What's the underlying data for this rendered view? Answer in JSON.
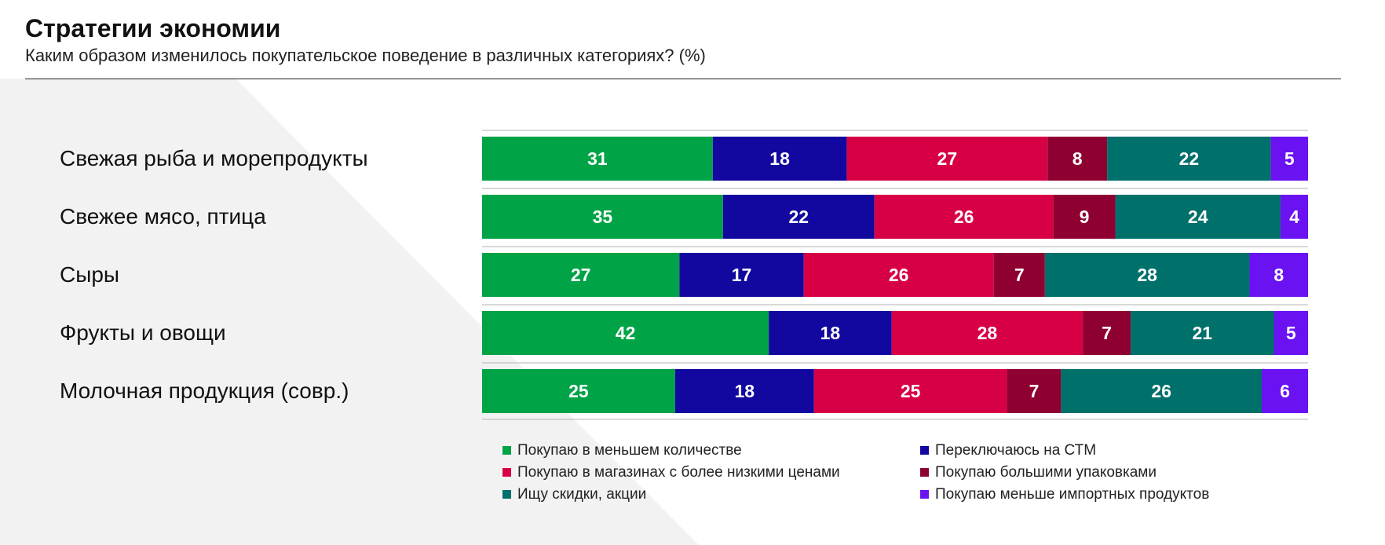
{
  "header": {
    "title": "Стратегии экономии",
    "subtitle": "Каким образом изменилось покупательское поведение в различных категориях? (%)"
  },
  "chart_data": {
    "type": "bar",
    "orientation": "horizontal",
    "stacked": true,
    "title": "Стратегии экономии",
    "subtitle": "Каким образом изменилось покупательское поведение в различных категориях? (%)",
    "categories": [
      "Свежая рыба и морепродукты",
      "Свежее мясо, птица",
      "Сыры",
      "Фрукты и овощи",
      "Молочная продукция (совр.)"
    ],
    "series": [
      {
        "name": "Покупаю в меньшем количестве",
        "color": "#00a346",
        "values": [
          31,
          35,
          27,
          42,
          25
        ]
      },
      {
        "name": "Переключаюсь на СТМ",
        "color": "#12089f",
        "values": [
          18,
          22,
          17,
          18,
          18
        ]
      },
      {
        "name": "Покупаю в магазинах с более низкими ценами",
        "color": "#d80045",
        "values": [
          27,
          26,
          26,
          28,
          25
        ]
      },
      {
        "name": "Покупаю большими упаковками",
        "color": "#8f0032",
        "values": [
          8,
          9,
          7,
          7,
          7
        ]
      },
      {
        "name": "Ищу скидки, акции",
        "color": "#00706b",
        "values": [
          22,
          24,
          28,
          21,
          26
        ]
      },
      {
        "name": "Покупаю меньше импортных продуктов",
        "color": "#6a12f2",
        "values": [
          5,
          4,
          8,
          5,
          6
        ]
      }
    ],
    "legend_position": "bottom",
    "grid": false
  }
}
